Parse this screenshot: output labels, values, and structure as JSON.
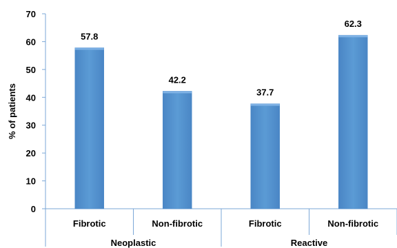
{
  "chart_data": {
    "type": "bar",
    "title": "",
    "xlabel": "",
    "ylabel": "% of patients",
    "ylim": [
      0,
      70
    ],
    "yticks": [
      0,
      10,
      20,
      30,
      40,
      50,
      60,
      70
    ],
    "grid": false,
    "legend": "none",
    "groups": [
      {
        "name": "Neoplastic",
        "categories": [
          "Fibrotic",
          "Non-fibrotic"
        ]
      },
      {
        "name": "Reactive",
        "categories": [
          "Fibrotic",
          "Non-fibrotic"
        ]
      }
    ],
    "categories": [
      "Fibrotic",
      "Non-fibrotic",
      "Fibrotic",
      "Non-fibrotic"
    ],
    "values": [
      57.8,
      42.2,
      37.7,
      62.3
    ],
    "bar_color": "#5B9BD5",
    "axis_color": "#7BA7D7"
  }
}
